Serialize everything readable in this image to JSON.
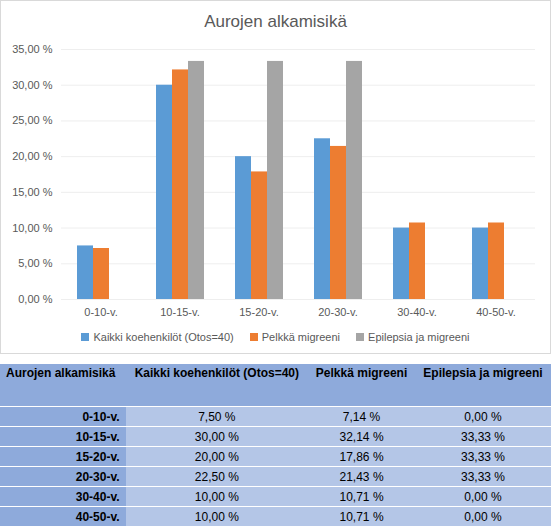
{
  "chart_data": {
    "type": "bar",
    "title": "Aurojen alkamisikä",
    "categories": [
      "0-10-v.",
      "10-15-v.",
      "15-20-v.",
      "20-30-v.",
      "30-40-v.",
      "40-50-v."
    ],
    "series": [
      {
        "name": "Kaikki koehenkilöt (Otos=40)",
        "color": "#5b9bd5",
        "values": [
          7.5,
          30,
          20,
          22.5,
          10,
          10
        ]
      },
      {
        "name": "Pelkkä migreeni",
        "color": "#ed7d31",
        "values": [
          7.14,
          32.14,
          17.86,
          21.43,
          10.71,
          10.71
        ]
      },
      {
        "name": "Epilepsia ja migreeni",
        "color": "#a5a5a5",
        "values": [
          0,
          33.33,
          33.33,
          33.33,
          0,
          0
        ]
      }
    ],
    "ylim": [
      0,
      35
    ],
    "yticks": [
      {
        "value": 0,
        "label": "0,00 %"
      },
      {
        "value": 5,
        "label": "5,00 %"
      },
      {
        "value": 10,
        "label": "10,00 %"
      },
      {
        "value": 15,
        "label": "15,00 %"
      },
      {
        "value": 20,
        "label": "20,00 %"
      },
      {
        "value": 25,
        "label": "25,00 %"
      },
      {
        "value": 30,
        "label": "30,00 %"
      },
      {
        "value": 35,
        "label": "35,00 %"
      }
    ],
    "grid": true,
    "legend": "bottom"
  },
  "table": {
    "header": [
      "Aurojen alkamisikä",
      "Kaikki koehenkilöt (Otos=40)",
      "Pelkkä migreeni",
      "Epilepsia ja migreeni"
    ],
    "rows": [
      [
        "0-10-v.",
        "7,50 %",
        "7,14 %",
        "0,00 %"
      ],
      [
        "10-15-v.",
        "30,00 %",
        "32,14 %",
        "33,33 %"
      ],
      [
        "15-20-v.",
        "20,00 %",
        "17,86 %",
        "33,33 %"
      ],
      [
        "20-30-v.",
        "22,50 %",
        "21,43 %",
        "33,33 %"
      ],
      [
        "30-40-v.",
        "10,00 %",
        "10,71 %",
        "0,00 %"
      ],
      [
        "40-50-v.",
        "10,00 %",
        "10,71 %",
        "0,00 %"
      ]
    ]
  }
}
